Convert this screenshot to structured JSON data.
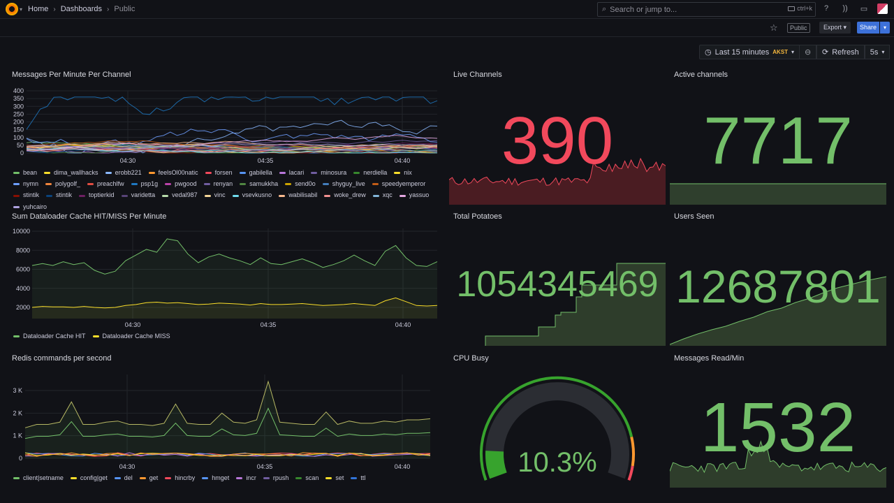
{
  "topbar": {
    "breadcrumbs": [
      "Home",
      "Dashboards",
      "Public"
    ],
    "search_placeholder": "Search or jump to...",
    "search_shortcut": "ctrl+k"
  },
  "toolbar": {
    "public_badge": "Public",
    "export_label": "Export",
    "share_label": "Share",
    "time_range": "Last 15 minutes",
    "timezone": "AKST",
    "refresh_label": "Refresh",
    "refresh_interval": "5s"
  },
  "panels": {
    "messages": {
      "title": "Messages Per Minute Per Channel",
      "y_ticks": [
        "400",
        "350",
        "300",
        "250",
        "200",
        "150",
        "100",
        "50",
        "0"
      ],
      "x_ticks": [
        "04:30",
        "04:35",
        "04:40"
      ]
    },
    "live_channels": {
      "title": "Live Channels",
      "value": "390",
      "color": "#f2495c"
    },
    "active_channels": {
      "title": "Active channels",
      "value": "7717",
      "color": "#73bf69"
    },
    "dataloader": {
      "title": "Sum Dataloader Cache HIT/MISS Per Minute",
      "y_ticks": [
        "10000",
        "8000",
        "6000",
        "4000",
        "2000"
      ],
      "x_ticks": [
        "04:30",
        "04:35",
        "04:40"
      ],
      "legend": [
        {
          "name": "Dataloader Cache HIT",
          "color": "#73bf69"
        },
        {
          "name": "Dataloader Cache MISS",
          "color": "#fade2a"
        }
      ]
    },
    "total_potatoes": {
      "title": "Total Potatoes",
      "value": "1054345469",
      "color": "#73bf69"
    },
    "users_seen": {
      "title": "Users Seen",
      "value": "12687801",
      "color": "#73bf69"
    },
    "redis": {
      "title": "Redis commands per second",
      "y_ticks": [
        "3 K",
        "2 K",
        "1 K",
        "0"
      ],
      "x_ticks": [
        "04:30",
        "04:35",
        "04:40"
      ],
      "legend": [
        {
          "name": "client|setname",
          "color": "#73bf69"
        },
        {
          "name": "config|get",
          "color": "#fade2a"
        },
        {
          "name": "del",
          "color": "#5794f2"
        },
        {
          "name": "get",
          "color": "#ff9830"
        },
        {
          "name": "hincrby",
          "color": "#f2495c"
        },
        {
          "name": "hmget",
          "color": "#5794f2"
        },
        {
          "name": "incr",
          "color": "#b877d9"
        },
        {
          "name": "rpush",
          "color": "#705da0"
        },
        {
          "name": "scan",
          "color": "#37872d"
        },
        {
          "name": "set",
          "color": "#fade2a"
        },
        {
          "name": "ttl",
          "color": "#3274d9"
        }
      ]
    },
    "cpu_busy": {
      "title": "CPU Busy",
      "value": "10.3%",
      "percent": 10.3,
      "color": "#73bf69"
    },
    "messages_read": {
      "title": "Messages Read/Min",
      "value": "1532",
      "color": "#73bf69"
    }
  },
  "channel_legend": [
    {
      "name": "bean",
      "color": "#73bf69"
    },
    {
      "name": "dima_wallhacks",
      "color": "#fade2a"
    },
    {
      "name": "erobb221",
      "color": "#8ab8ff"
    },
    {
      "name": "feelsOl00natic",
      "color": "#ff9830"
    },
    {
      "name": "forsen",
      "color": "#f2495c"
    },
    {
      "name": "gabilella",
      "color": "#5794f2"
    },
    {
      "name": "lacari",
      "color": "#b877d9"
    },
    {
      "name": "minosura",
      "color": "#705da0"
    },
    {
      "name": "nerdiella",
      "color": "#37872d"
    },
    {
      "name": "nix",
      "color": "#fade2a"
    },
    {
      "name": "nymn",
      "color": "#6e9fff"
    },
    {
      "name": "polygolf_",
      "color": "#ef843c"
    },
    {
      "name": "preachlfw",
      "color": "#e24d42"
    },
    {
      "name": "psp1g",
      "color": "#1f78c1"
    },
    {
      "name": "pwgood",
      "color": "#ba43a9"
    },
    {
      "name": "renyan",
      "color": "#705da0"
    },
    {
      "name": "samukkha",
      "color": "#508642"
    },
    {
      "name": "send0o",
      "color": "#cca300"
    },
    {
      "name": "shyguy_live",
      "color": "#447ebc"
    },
    {
      "name": "speedyemperor",
      "color": "#c15c17"
    },
    {
      "name": "stintik",
      "color": "#890f02"
    },
    {
      "name": "stintik",
      "color": "#0a437c"
    },
    {
      "name": "toptierkid",
      "color": "#6d1f62"
    },
    {
      "name": "varidetta",
      "color": "#584477"
    },
    {
      "name": "vedal987",
      "color": "#b7dbab"
    },
    {
      "name": "vinc",
      "color": "#f4d598"
    },
    {
      "name": "vsevkusno",
      "color": "#70dbed"
    },
    {
      "name": "wabilisabil",
      "color": "#f9ba8f"
    },
    {
      "name": "woke_drew",
      "color": "#f29191"
    },
    {
      "name": "xqc",
      "color": "#82b5d8"
    },
    {
      "name": "yassuo",
      "color": "#e5a8e2"
    },
    {
      "name": "yuhcairo",
      "color": "#aea2e0"
    }
  ]
}
